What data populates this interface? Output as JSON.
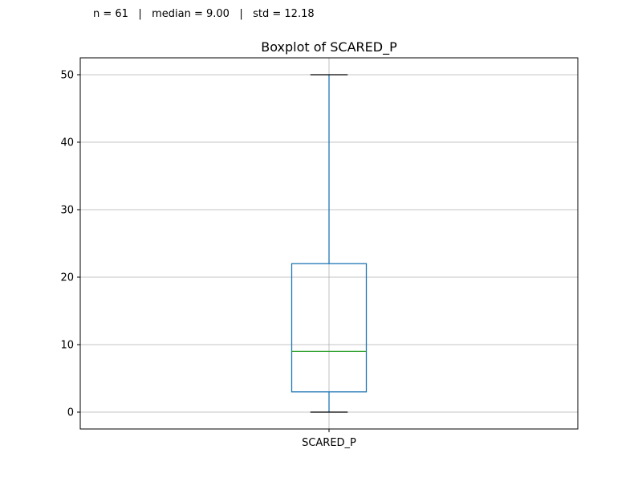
{
  "stats": {
    "text": "n = 61   |   median = 9.00   |   std = 12.18"
  },
  "chart_data": {
    "type": "boxplot",
    "title": "Boxplot of SCARED_P",
    "xlabel": "",
    "ylabel": "",
    "categories": [
      "SCARED_P"
    ],
    "boxes": [
      {
        "category": "SCARED_P",
        "whisker_low": 0,
        "q1": 3,
        "median": 9,
        "q3": 22,
        "whisker_high": 50
      }
    ],
    "ylim": [
      -2.5,
      52.5
    ],
    "yticks": [
      0,
      10,
      20,
      30,
      40,
      50
    ],
    "grid": true,
    "colors": {
      "box": "#1f77b4",
      "median": "#2ca02c",
      "caps": "#000000",
      "grid": "#b0b0b0"
    }
  }
}
